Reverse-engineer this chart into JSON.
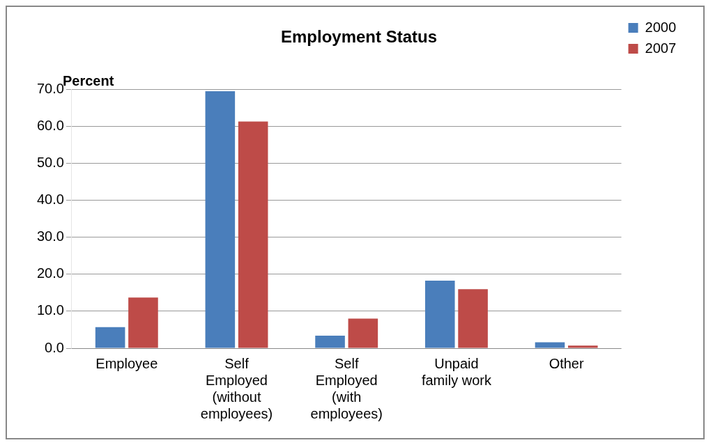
{
  "chart_data": {
    "type": "bar",
    "title": "Employment Status",
    "ylabel": "Percent",
    "categories": [
      "Employee",
      "Self Employed (without employees)",
      "Self Employed (with employees)",
      "Unpaid family work",
      "Other"
    ],
    "series": [
      {
        "name": "2000",
        "color": "#4a7ebb",
        "values": [
          5.7,
          69.6,
          3.4,
          18.3,
          1.6
        ]
      },
      {
        "name": "2007",
        "color": "#be4b48",
        "values": [
          13.7,
          61.4,
          8.0,
          16.0,
          0.7
        ]
      }
    ],
    "ylim": [
      0,
      70
    ],
    "yticks": [
      {
        "value": 0,
        "label": "0.0"
      },
      {
        "value": 10,
        "label": "10.0"
      },
      {
        "value": 20,
        "label": "20.0"
      },
      {
        "value": 30,
        "label": "30.0"
      },
      {
        "value": 40,
        "label": "40.0"
      },
      {
        "value": 50,
        "label": "50.0"
      },
      {
        "value": 60,
        "label": "60.0"
      },
      {
        "value": 70,
        "label": "70.0"
      }
    ],
    "grid": "y",
    "legend": "top right"
  }
}
